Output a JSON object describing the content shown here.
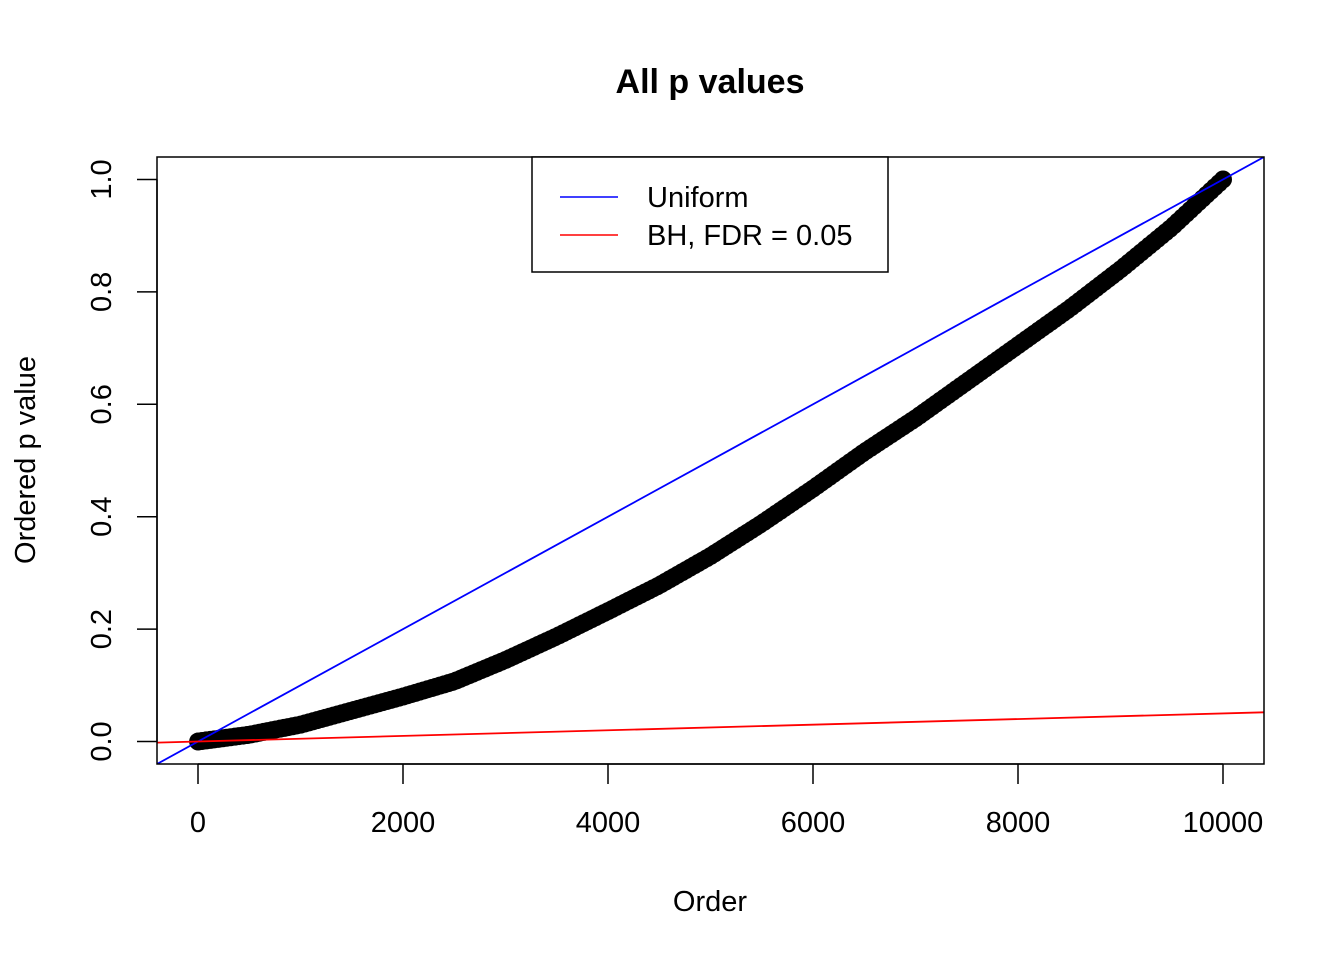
{
  "chart_data": {
    "type": "scatter",
    "title": "All p values",
    "xlabel": "Order",
    "ylabel": "Ordered p value",
    "xlim": [
      -400,
      10400
    ],
    "ylim": [
      -0.04,
      1.04
    ],
    "x_ticks": [
      0,
      2000,
      4000,
      6000,
      8000,
      10000
    ],
    "y_ticks": [
      0.0,
      0.2,
      0.4,
      0.6,
      0.8,
      1.0
    ],
    "x_tick_labels": [
      "0",
      "2000",
      "4000",
      "6000",
      "8000",
      "10000"
    ],
    "y_tick_labels": [
      "0.0",
      "0.2",
      "0.4",
      "0.6",
      "0.8",
      "1.0"
    ],
    "grid": false,
    "legend_position": "top-center",
    "series": [
      {
        "kind": "points",
        "color": "#000000",
        "n_points": 10000,
        "x": [
          1,
          500,
          1000,
          1500,
          2000,
          2500,
          3000,
          3500,
          4000,
          4500,
          5000,
          5500,
          6000,
          6500,
          7000,
          7500,
          8000,
          8500,
          9000,
          9500,
          10000
        ],
        "y": [
          0.0,
          0.012,
          0.03,
          0.055,
          0.08,
          0.107,
          0.145,
          0.187,
          0.232,
          0.278,
          0.33,
          0.388,
          0.45,
          0.515,
          0.575,
          0.64,
          0.705,
          0.77,
          0.84,
          0.915,
          1.0
        ]
      },
      {
        "name": "Uniform",
        "kind": "abline",
        "color": "#0000ff",
        "intercept": 0,
        "slope": 0.0001
      },
      {
        "name": "BH, FDR = 0.05",
        "kind": "abline",
        "color": "#ff0000",
        "intercept": 0,
        "slope": 5e-06
      }
    ]
  }
}
